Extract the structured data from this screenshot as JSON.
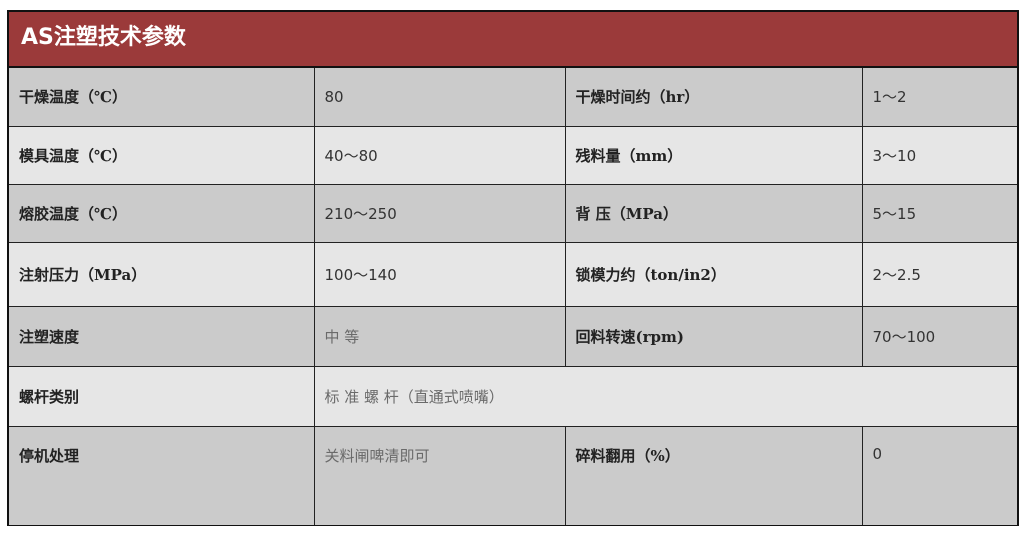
{
  "title": "AS注塑技术参数",
  "rows": [
    {
      "k1": "干燥温度（℃）",
      "v1": "80",
      "k2": "干燥时间约（hr）",
      "v2": "1～2"
    },
    {
      "k1": "模具温度（℃）",
      "v1": "40～80",
      "k2": "残料量（mm）",
      "v2": "3～10"
    },
    {
      "k1": "熔胶温度（℃）",
      "v1": "210～250",
      "k2": "背 压（MPa）",
      "v2": "5～15"
    },
    {
      "k1": "注射压力（MPa）",
      "v1": "100～140",
      "k2": "锁模力约（ton/in2）",
      "v2": "2～2.5"
    },
    {
      "k1": "注塑速度",
      "v1": "中 等",
      "k2": "回料转速(rpm)",
      "v2": "70～100"
    },
    {
      "k1": "螺杆类别",
      "v1": "标 准 螺 杆（直通式喷嘴）"
    },
    {
      "k1": "停机处理",
      "v1": "关料闸啤清即可",
      "k2": "碎料翻用（%）",
      "v2": "0"
    }
  ]
}
